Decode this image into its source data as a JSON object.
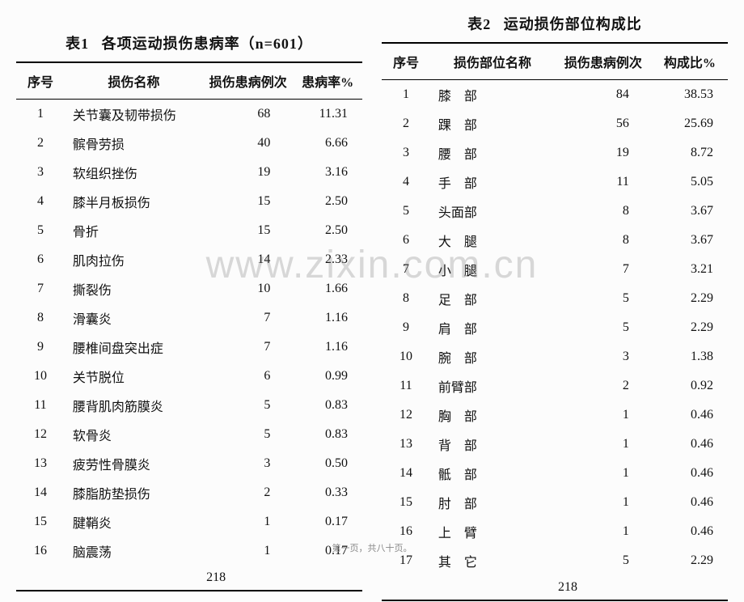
{
  "watermark": "www.zixin.com.cn",
  "footer": "第一页，共八十页。",
  "left": {
    "caption_label": "表1",
    "caption_title": "各项运动损伤患病率（n=601）",
    "headers": {
      "c1": "序号",
      "c2": "损伤名称",
      "c3": "损伤患病例次",
      "c4": "患病率%"
    },
    "rows": [
      {
        "n": "1",
        "name": "关节囊及韧带损伤",
        "cnt": "68",
        "rate": "11.31"
      },
      {
        "n": "2",
        "name": "髌骨劳损",
        "cnt": "40",
        "rate": "6.66"
      },
      {
        "n": "3",
        "name": "软组织挫伤",
        "cnt": "19",
        "rate": "3.16"
      },
      {
        "n": "4",
        "name": "膝半月板损伤",
        "cnt": "15",
        "rate": "2.50"
      },
      {
        "n": "5",
        "name": "骨折",
        "cnt": "15",
        "rate": "2.50"
      },
      {
        "n": "6",
        "name": "肌肉拉伤",
        "cnt": "14",
        "rate": "2.33"
      },
      {
        "n": "7",
        "name": "撕裂伤",
        "cnt": "10",
        "rate": "1.66"
      },
      {
        "n": "8",
        "name": "滑囊炎",
        "cnt": "7",
        "rate": "1.16"
      },
      {
        "n": "9",
        "name": "腰椎间盘突出症",
        "cnt": "7",
        "rate": "1.16"
      },
      {
        "n": "10",
        "name": "关节脱位",
        "cnt": "6",
        "rate": "0.99"
      },
      {
        "n": "11",
        "name": "腰背肌肉筋膜炎",
        "cnt": "5",
        "rate": "0.83"
      },
      {
        "n": "12",
        "name": "软骨炎",
        "cnt": "5",
        "rate": "0.83"
      },
      {
        "n": "13",
        "name": "疲劳性骨膜炎",
        "cnt": "3",
        "rate": "0.50"
      },
      {
        "n": "14",
        "name": "膝脂肪垫损伤",
        "cnt": "2",
        "rate": "0.33"
      },
      {
        "n": "15",
        "name": "腱鞘炎",
        "cnt": "1",
        "rate": "0.17"
      },
      {
        "n": "16",
        "name": "脑震荡",
        "cnt": "1",
        "rate": "0.17"
      }
    ],
    "total": "218"
  },
  "right": {
    "caption_label": "表2",
    "caption_title": "运动损伤部位构成比",
    "headers": {
      "c1": "序号",
      "c2": "损伤部位名称",
      "c3": "损伤患病例次",
      "c4": "构成比%"
    },
    "rows": [
      {
        "n": "1",
        "name": "膝　部",
        "cnt": "84",
        "rate": "38.53"
      },
      {
        "n": "2",
        "name": "踝　部",
        "cnt": "56",
        "rate": "25.69"
      },
      {
        "n": "3",
        "name": "腰　部",
        "cnt": "19",
        "rate": "8.72"
      },
      {
        "n": "4",
        "name": "手　部",
        "cnt": "11",
        "rate": "5.05"
      },
      {
        "n": "5",
        "name": "头面部",
        "cnt": "8",
        "rate": "3.67"
      },
      {
        "n": "6",
        "name": "大　腿",
        "cnt": "8",
        "rate": "3.67"
      },
      {
        "n": "7",
        "name": "小　腿",
        "cnt": "7",
        "rate": "3.21"
      },
      {
        "n": "8",
        "name": "足　部",
        "cnt": "5",
        "rate": "2.29"
      },
      {
        "n": "9",
        "name": "肩　部",
        "cnt": "5",
        "rate": "2.29"
      },
      {
        "n": "10",
        "name": "腕　部",
        "cnt": "3",
        "rate": "1.38"
      },
      {
        "n": "11",
        "name": "前臂部",
        "cnt": "2",
        "rate": "0.92"
      },
      {
        "n": "12",
        "name": "胸　部",
        "cnt": "1",
        "rate": "0.46"
      },
      {
        "n": "13",
        "name": "背　部",
        "cnt": "1",
        "rate": "0.46"
      },
      {
        "n": "14",
        "name": "骶　部",
        "cnt": "1",
        "rate": "0.46"
      },
      {
        "n": "15",
        "name": "肘　部",
        "cnt": "1",
        "rate": "0.46"
      },
      {
        "n": "16",
        "name": "上　臂",
        "cnt": "1",
        "rate": "0.46"
      },
      {
        "n": "17",
        "name": "其　它",
        "cnt": "5",
        "rate": "2.29"
      }
    ],
    "total": "218"
  }
}
